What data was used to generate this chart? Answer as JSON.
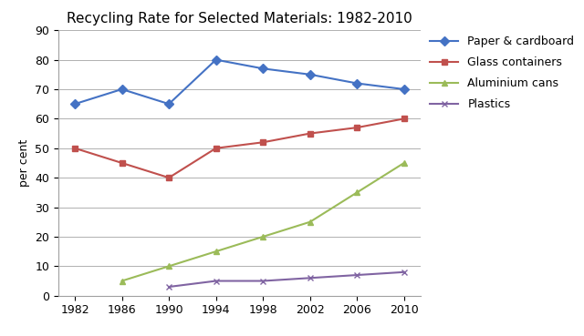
{
  "title": "Recycling Rate for Selected Materials: 1982-2010",
  "ylabel": "per cent",
  "years": [
    1982,
    1986,
    1990,
    1994,
    1998,
    2002,
    2006,
    2010
  ],
  "series": [
    {
      "label": "Paper & cardboard",
      "values": [
        65,
        70,
        65,
        80,
        77,
        75,
        72,
        70
      ],
      "color": "#4472C4",
      "marker": "D",
      "markersize": 5,
      "linewidth": 1.5
    },
    {
      "label": "Glass containers",
      "values": [
        50,
        45,
        40,
        50,
        52,
        55,
        57,
        60
      ],
      "color": "#C0504D",
      "marker": "s",
      "markersize": 5,
      "linewidth": 1.5
    },
    {
      "label": "Aluminium cans",
      "values": [
        null,
        5,
        10,
        15,
        20,
        25,
        35,
        45
      ],
      "color": "#9BBB59",
      "marker": "^",
      "markersize": 5,
      "linewidth": 1.5
    },
    {
      "label": "Plastics",
      "values": [
        null,
        null,
        3,
        5,
        5,
        6,
        7,
        8
      ],
      "color": "#8064A2",
      "marker": "x",
      "markersize": 5,
      "linewidth": 1.5
    }
  ],
  "ylim": [
    0,
    90
  ],
  "yticks": [
    0,
    10,
    20,
    30,
    40,
    50,
    60,
    70,
    80,
    90
  ],
  "xticks": [
    1982,
    1986,
    1990,
    1994,
    1998,
    2002,
    2006,
    2010
  ],
  "background_color": "#ffffff",
  "grid_color": "#b0b0b0",
  "title_fontsize": 11,
  "title_fontweight": "normal",
  "axis_label_fontsize": 9,
  "tick_fontsize": 9,
  "legend_fontsize": 9
}
